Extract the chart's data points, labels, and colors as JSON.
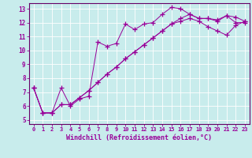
{
  "xlabel": "Windchill (Refroidissement éolien,°C)",
  "bg_color": "#c8ecec",
  "grid_color": "#ffffff",
  "line_color": "#990099",
  "spine_color": "#660066",
  "xlim": [
    -0.5,
    23.5
  ],
  "ylim": [
    4.7,
    13.4
  ],
  "xticks": [
    0,
    1,
    2,
    3,
    4,
    5,
    6,
    7,
    8,
    9,
    10,
    11,
    12,
    13,
    14,
    15,
    16,
    17,
    18,
    19,
    20,
    21,
    22,
    23
  ],
  "yticks": [
    5,
    6,
    7,
    8,
    9,
    10,
    11,
    12,
    13
  ],
  "series1_x": [
    0,
    1,
    2,
    3,
    4,
    5,
    6,
    7,
    8,
    9,
    10,
    11,
    12,
    13,
    14,
    15,
    16,
    17,
    18,
    19,
    20,
    21,
    22,
    23
  ],
  "series1_y": [
    7.3,
    5.5,
    5.5,
    7.3,
    6.0,
    6.5,
    6.7,
    10.6,
    10.3,
    10.5,
    11.9,
    11.5,
    11.9,
    12.0,
    12.6,
    13.1,
    13.0,
    12.6,
    12.3,
    12.3,
    12.1,
    12.5,
    12.0,
    12.0
  ],
  "series2_x": [
    0,
    1,
    2,
    3,
    4,
    5,
    6,
    7,
    8,
    9,
    10,
    11,
    12,
    13,
    14,
    15,
    16,
    17,
    18,
    19,
    20,
    21,
    22,
    23
  ],
  "series2_y": [
    7.3,
    5.5,
    5.5,
    6.1,
    6.1,
    6.6,
    7.1,
    7.7,
    8.3,
    8.8,
    9.4,
    9.9,
    10.4,
    10.9,
    11.4,
    11.9,
    12.1,
    12.3,
    12.1,
    11.7,
    11.4,
    11.1,
    11.8,
    12.1
  ],
  "series3_x": [
    0,
    1,
    2,
    3,
    4,
    5,
    6,
    7,
    8,
    9,
    10,
    11,
    12,
    13,
    14,
    15,
    16,
    17,
    18,
    19,
    20,
    21,
    22,
    23
  ],
  "series3_y": [
    7.3,
    5.5,
    5.5,
    6.1,
    6.1,
    6.6,
    7.1,
    7.7,
    8.3,
    8.8,
    9.4,
    9.9,
    10.4,
    10.9,
    11.4,
    11.9,
    12.3,
    12.6,
    12.3,
    12.3,
    12.2,
    12.5,
    12.4,
    12.1
  ]
}
